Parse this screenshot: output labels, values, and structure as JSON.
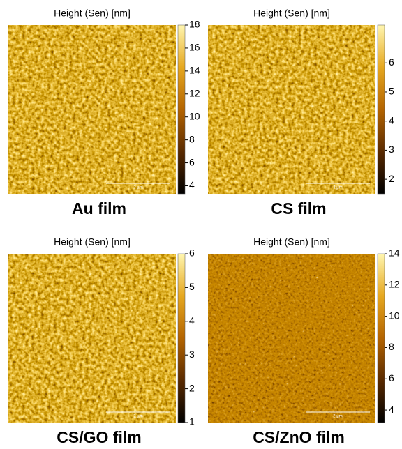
{
  "panels": [
    {
      "title": "Height (Sen) [nm]",
      "caption": "Au film",
      "scale_bar": "2 µm",
      "colorbar": {
        "lim": [
          3.3,
          18
        ],
        "ticks": [
          4,
          6,
          8,
          10,
          12,
          14,
          16,
          18
        ]
      }
    },
    {
      "title": "Height (Sen) [nm]",
      "caption": "CS film",
      "scale_bar": "2 µm",
      "colorbar": {
        "lim": [
          1.5,
          7.3
        ],
        "ticks": [
          2,
          3,
          4,
          5,
          6
        ]
      }
    },
    {
      "title": "Height (Sen) [nm]",
      "caption": "CS/GO film",
      "scale_bar": "2 µm",
      "colorbar": {
        "lim": [
          1,
          6
        ],
        "ticks": [
          1,
          2,
          3,
          4,
          5,
          6
        ]
      }
    },
    {
      "title": "Height (Sen) [nm]",
      "caption": "CS/ZnO film",
      "scale_bar": "2 µm",
      "colorbar": {
        "lim": [
          3.2,
          14
        ],
        "ticks": [
          4,
          6,
          8,
          10,
          12,
          14
        ]
      }
    }
  ]
}
